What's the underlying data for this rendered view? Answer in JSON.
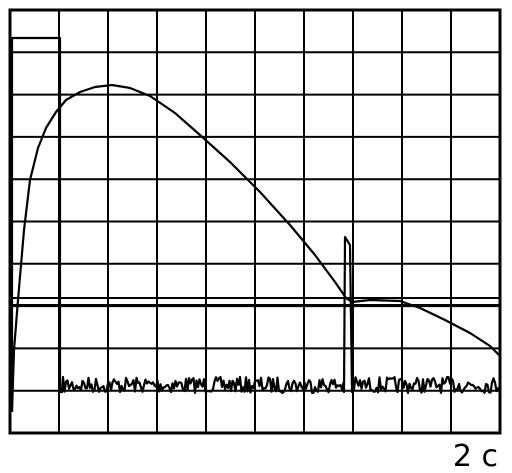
{
  "scale_label": "2 с"
}
